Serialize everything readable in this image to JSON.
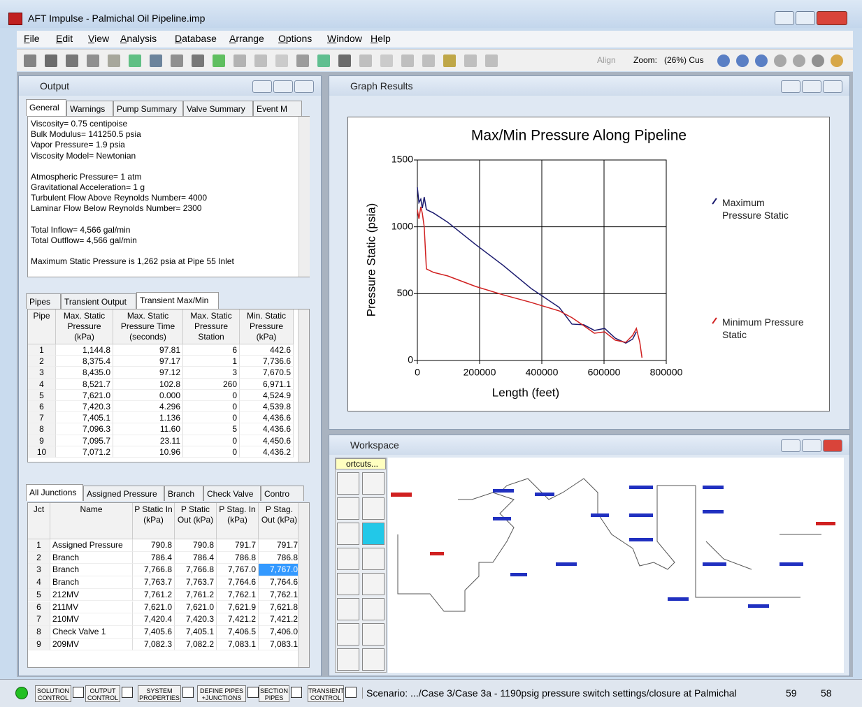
{
  "window": {
    "title": "AFT Impulse - Palmichal Oil Pipeline.imp"
  },
  "menu": [
    "File",
    "Edit",
    "View",
    "Analysis",
    "Database",
    "Arrange",
    "Options",
    "Window",
    "Help"
  ],
  "toolbar": {
    "align": "Align",
    "zoom_label": "Zoom:",
    "zoom_value": "(26%) Cus"
  },
  "output": {
    "title": "Output",
    "tabs": [
      "General",
      "Warnings",
      "Pump Summary",
      "Valve Summary",
      "Event M"
    ],
    "text": [
      [
        "Viscosity= 0.75 centipoise",
        "Bulk Modulus= 141250.5 psia",
        "Vapor Pressure= 1.9 psia",
        "Viscosity Model= Newtonian"
      ],
      [
        "Atmospheric Pressure= 1 atm",
        "Gravitational Acceleration= 1 g",
        "Turbulent Flow Above Reynolds Number= 4000",
        "Laminar Flow Below Reynolds Number= 2300"
      ],
      [
        "Total Inflow= 4,566 gal/min",
        "Total Outflow= 4,566 gal/min"
      ],
      [
        "Maximum Static Pressure is 1,262 psia at Pipe 55 Inlet"
      ]
    ],
    "tabs2": [
      "Pipes",
      "Transient Output",
      "Transient Max/Min"
    ],
    "pipe_table": {
      "headers": [
        "Pipe",
        "Max. Static Pressure (kPa)",
        "Max. Static Pressure Time (seconds)",
        "Max. Static Pressure Station",
        "Min. Static Pressure (kPa)"
      ],
      "rows": [
        [
          "1",
          "1,144.8",
          "97.81",
          "6",
          "442.6"
        ],
        [
          "2",
          "8,375.4",
          "97.17",
          "1",
          "7,736.6"
        ],
        [
          "3",
          "8,435.0",
          "97.12",
          "3",
          "7,670.5"
        ],
        [
          "4",
          "8,521.7",
          "102.8",
          "260",
          "6,971.1"
        ],
        [
          "5",
          "7,621.0",
          "0.000",
          "0",
          "4,524.9"
        ],
        [
          "6",
          "7,420.3",
          "4.296",
          "0",
          "4,539.8"
        ],
        [
          "7",
          "7,405.1",
          "1.136",
          "0",
          "4,436.6"
        ],
        [
          "8",
          "7,096.3",
          "11.60",
          "5",
          "4,436.6"
        ],
        [
          "9",
          "7,095.7",
          "23.11",
          "0",
          "4,450.6"
        ],
        [
          "10",
          "7,071.2",
          "10.96",
          "0",
          "4,436.2"
        ]
      ]
    },
    "junction_tabs": [
      "All Junctions",
      "Assigned Pressure",
      "Branch",
      "Check Valve",
      "Contro"
    ],
    "junction_table": {
      "headers": [
        "Jct",
        "Name",
        "P Static In (kPa)",
        "P Static Out (kPa)",
        "P Stag. In (kPa)",
        "P Stag. Out (kPa)"
      ],
      "rows": [
        [
          "1",
          "Assigned Pressure",
          "790.8",
          "790.8",
          "791.7",
          "791.7"
        ],
        [
          "2",
          "Branch",
          "786.4",
          "786.4",
          "786.8",
          "786.8"
        ],
        [
          "3",
          "Branch",
          "7,766.8",
          "7,766.8",
          "7,767.0",
          "7,767.0"
        ],
        [
          "4",
          "Branch",
          "7,763.7",
          "7,763.7",
          "7,764.6",
          "7,764.6"
        ],
        [
          "5",
          "212MV",
          "7,761.2",
          "7,761.2",
          "7,762.1",
          "7,762.1"
        ],
        [
          "6",
          "211MV",
          "7,621.0",
          "7,621.0",
          "7,621.9",
          "7,621.8"
        ],
        [
          "7",
          "210MV",
          "7,420.4",
          "7,420.3",
          "7,421.2",
          "7,421.2"
        ],
        [
          "8",
          "Check Valve 1",
          "7,405.6",
          "7,405.1",
          "7,406.5",
          "7,406.0"
        ],
        [
          "9",
          "209MV",
          "7,082.3",
          "7,082.2",
          "7,083.1",
          "7,083.1"
        ]
      ]
    }
  },
  "graph_window": {
    "title": "Graph Results"
  },
  "chart_data": {
    "type": "line",
    "title": "Max/Min Pressure Along Pipeline",
    "x_label": "Length (feet)",
    "y_label": "Pressure Static (psia)",
    "x": [
      0,
      5000,
      11000,
      16000,
      22000,
      29000,
      52000,
      97000,
      187000,
      276000,
      366000,
      456000,
      497000,
      535000,
      569000,
      602000,
      636000,
      670000,
      692000,
      704000,
      715000,
      722000
    ],
    "series": [
      {
        "name": "Maximum Pressure Static",
        "color": "#1a1a6e",
        "values": [
          1296,
          1181,
          1207,
          1140,
          1223,
          1129,
          1103,
          1035,
          868,
          711,
          538,
          397,
          272,
          267,
          225,
          240,
          167,
          130,
          160,
          215,
          null,
          null
        ]
      },
      {
        "name": "Minimum Pressure Static",
        "color": "#d02020",
        "values": [
          1129,
          1060,
          1150,
          1100,
          1000,
          685,
          659,
          633,
          554,
          491,
          434,
          371,
          320,
          260,
          204,
          214,
          152,
          136,
          188,
          240,
          136,
          21
        ]
      }
    ],
    "xlim": [
      0,
      800000
    ],
    "ylim": [
      0,
      1500
    ],
    "xticks": [
      0,
      200000,
      400000,
      600000,
      800000
    ],
    "yticks": [
      0,
      500,
      1000,
      1500
    ],
    "grid": true,
    "legend": "right"
  },
  "workspace": {
    "title": "Workspace",
    "shortcuts": "ortcuts..."
  },
  "status_bar": {
    "buttons": [
      "SOLUTION CONTROL",
      "OUTPUT CONTROL",
      "SYSTEM PROPERTIES",
      "DEFINE PIPES +JUNCTIONS",
      "SECTION PIPES",
      "TRANSIENT CONTROL"
    ],
    "scenario": "Scenario: .../Case 3/Case 3a - 1190psig pressure switch settings/closure at Palmichal",
    "pipes_count": "59",
    "junctions_count": "58"
  }
}
